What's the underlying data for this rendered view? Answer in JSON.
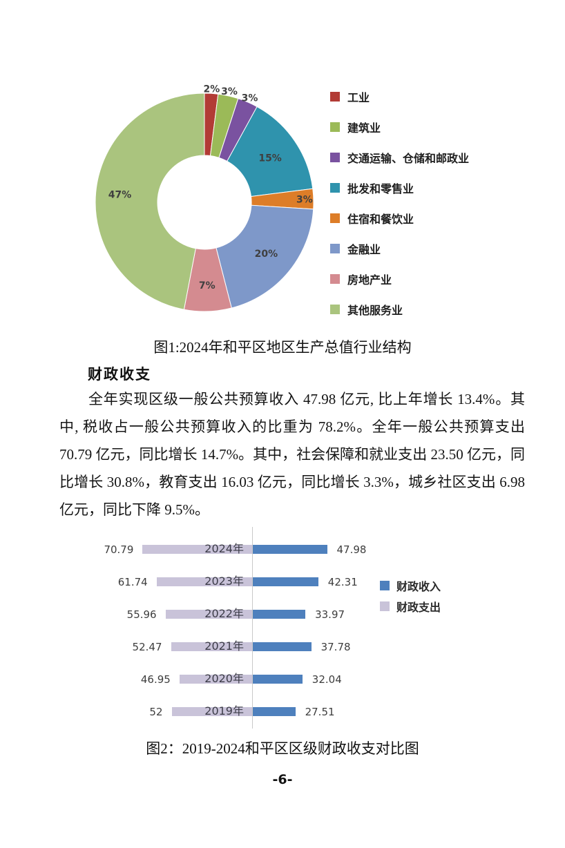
{
  "page_number": "-6-",
  "figure1": {
    "caption": "图1:2024年和平区地区生产总值行业结构"
  },
  "section": {
    "heading": "财政收支",
    "paragraph": "全年实现区级一般公共预算收入 47.98 亿元, 比上年增长 13.4%。其中, 税收占一般公共预算收入的比重为 78.2%。全年一般公共预算支出 70.79 亿元，同比增长 14.7%。其中，社会保障和就业支出 23.50 亿元，同比增长 30.8%，教育支出 16.03 亿元，同比增长 3.3%，城乡社区支出 6.98 亿元，同比下降 9.5%。"
  },
  "figure2": {
    "caption": "图2：2019-2024和平区区级财政收支对比图"
  },
  "chart_data": [
    {
      "type": "pie",
      "subtype": "donut",
      "title": "图1:2024年和平区地区生产总值行业结构",
      "labels": [
        "工业",
        "建筑业",
        "交通运输、仓储和邮政业",
        "批发和零售业",
        "住宿和餐饮业",
        "金融业",
        "房地产业",
        "其他服务业"
      ],
      "values": [
        2,
        3,
        3,
        15,
        3,
        20,
        7,
        47
      ],
      "unit": "%",
      "colors": [
        "#B23B35",
        "#9BBA58",
        "#7A52A0",
        "#2F93AD",
        "#DD7D28",
        "#7E98C9",
        "#D48B90",
        "#AAC47E"
      ],
      "legend_position": "right",
      "label_radii": [
        165,
        165,
        165,
        115,
        145,
        116,
        120,
        123
      ]
    },
    {
      "type": "bar",
      "subtype": "diverging-horizontal",
      "title": "图2：2019-2024和平区区级财政收支对比图",
      "categories": [
        "2024年",
        "2023年",
        "2022年",
        "2021年",
        "2020年",
        "2019年"
      ],
      "series": [
        {
          "name": "财政收入",
          "color": "#4E80BD",
          "direction": "right",
          "values": [
            47.98,
            42.31,
            33.97,
            37.78,
            32.04,
            27.51
          ]
        },
        {
          "name": "财政支出",
          "color": "#C9C3D9",
          "direction": "left",
          "values": [
            70.79,
            61.74,
            55.96,
            52.47,
            46.95,
            52
          ]
        }
      ],
      "legend_position": "right",
      "axis": {
        "center_line": true,
        "value_labels": true
      }
    }
  ]
}
